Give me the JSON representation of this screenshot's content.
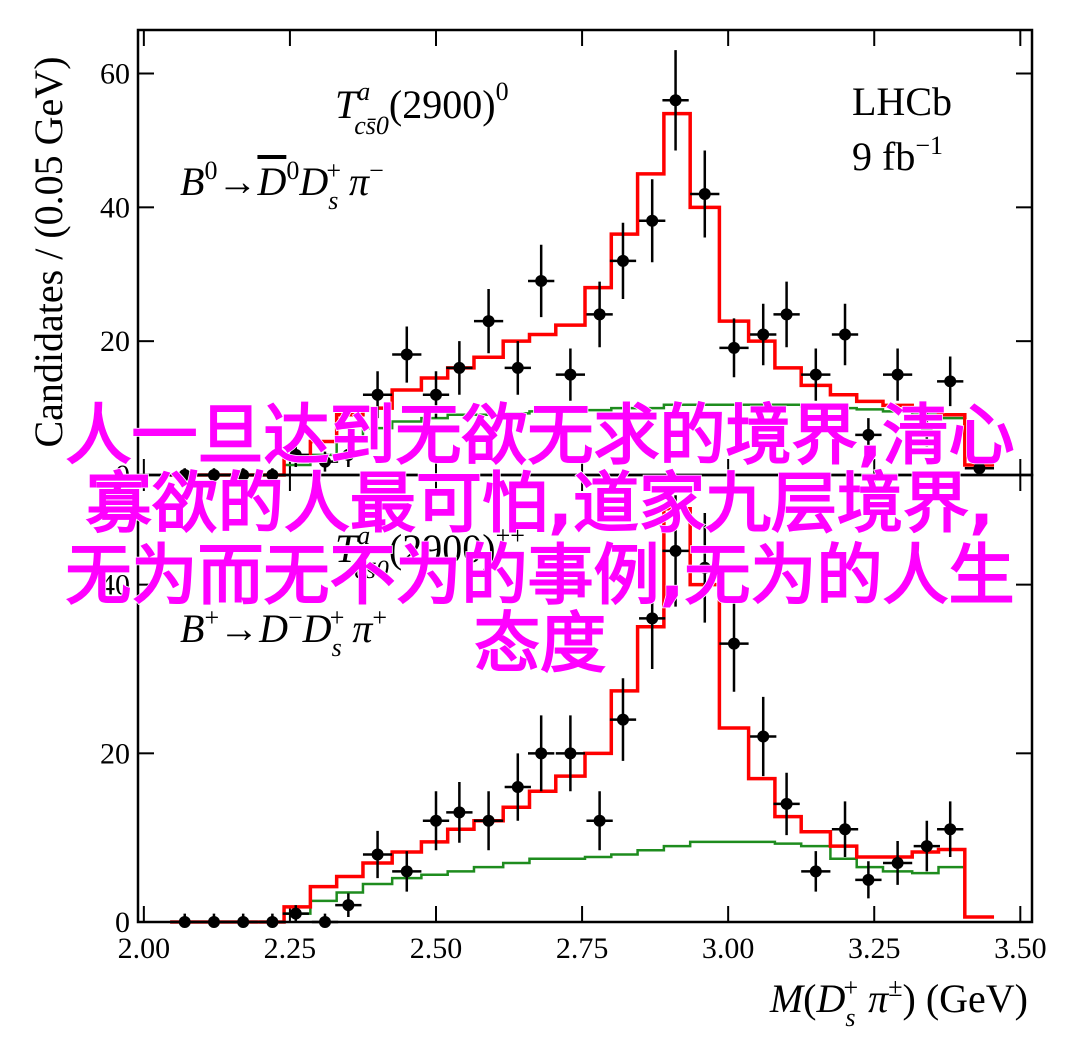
{
  "chart_data": [
    {
      "type": "errorbar",
      "ylabel": "Candidates / (0.05 GeV)",
      "annotation_1": [
        "T",
        "a",
        "cs̄0",
        "(2900)",
        "0"
      ],
      "annotation_2": [
        "B",
        "0",
        "→",
        "D",
        "0",
        "D",
        "s",
        "+",
        "π",
        "−"
      ],
      "experiment": "LHCb",
      "luminosity": [
        "9 fb",
        "−1"
      ],
      "xlim": [
        1.99,
        3.52
      ],
      "ylim": [
        0,
        66.5
      ],
      "yticks": [
        0,
        20,
        40,
        60
      ],
      "x": [
        2.07,
        2.12,
        2.17,
        2.22,
        2.26,
        2.31,
        2.35,
        2.4,
        2.45,
        2.5,
        2.54,
        2.59,
        2.64,
        2.68,
        2.73,
        2.78,
        2.82,
        2.87,
        2.91,
        2.96,
        3.01,
        3.06,
        3.1,
        3.15,
        3.2,
        3.24,
        3.29,
        3.34,
        3.38,
        3.43
      ],
      "data": {
        "color": "#000000",
        "values": [
          0,
          0,
          0,
          0,
          3,
          2,
          3,
          12,
          18,
          12,
          16,
          23,
          16,
          29,
          15,
          24,
          32,
          38,
          56,
          42,
          19,
          21,
          24,
          15,
          21,
          6,
          15,
          7,
          14,
          1
        ],
        "errors": [
          1,
          1,
          1,
          1,
          1.8,
          1.5,
          1.8,
          3.5,
          4.2,
          3.5,
          4,
          4.8,
          4,
          5.4,
          3.9,
          4.9,
          5.7,
          6.2,
          7.5,
          6.5,
          4.4,
          4.6,
          4.9,
          3.9,
          4.6,
          2.5,
          3.9,
          2.7,
          3.7,
          1
        ]
      },
      "fit": {
        "color": "#ff0000",
        "values": [
          0,
          0,
          0,
          0,
          2.5,
          5,
          9,
          10,
          12.7,
          14.5,
          16,
          17.6,
          20,
          21,
          22.4,
          28,
          36,
          45,
          54,
          40,
          23,
          20,
          16,
          13.4,
          12,
          11,
          10.4,
          9.7,
          9,
          1.5
        ]
      },
      "background": {
        "color": "#1e8c1e",
        "values": [
          0,
          0,
          0,
          0,
          1.5,
          3,
          5,
          7,
          8,
          8.5,
          9,
          9,
          9.2,
          9.5,
          9.5,
          9.7,
          10,
          10,
          10.5,
          10.5,
          10.5,
          10.5,
          10.5,
          10.2,
          10,
          9.8,
          9.5,
          9,
          8.5,
          1.5
        ]
      }
    },
    {
      "type": "errorbar",
      "xlabel": [
        "M",
        "(",
        "D",
        "s",
        "+",
        " π",
        "±",
        ") (GeV)"
      ],
      "annotation_1": [
        "T",
        "a",
        "cs̄0",
        "(2900)",
        "++"
      ],
      "annotation_2": [
        "B",
        "+",
        "→",
        "D",
        "−",
        "D",
        "s",
        "+",
        "π",
        "+"
      ],
      "xlim": [
        1.99,
        3.52
      ],
      "ylim": [
        0,
        53
      ],
      "yticks": [
        0,
        20,
        40
      ],
      "xticks": [
        {
          "value": 2.0,
          "label": "2.00"
        },
        {
          "value": 2.25,
          "label": "2.25"
        },
        {
          "value": 2.5,
          "label": "2.50"
        },
        {
          "value": 2.75,
          "label": "2.75"
        },
        {
          "value": 3.0,
          "label": "3.00"
        },
        {
          "value": 3.25,
          "label": "3.25"
        },
        {
          "value": 3.5,
          "label": "3.50"
        }
      ],
      "x": [
        2.07,
        2.12,
        2.17,
        2.22,
        2.26,
        2.31,
        2.35,
        2.4,
        2.45,
        2.5,
        2.54,
        2.59,
        2.64,
        2.68,
        2.73,
        2.78,
        2.82,
        2.87,
        2.91,
        2.96,
        3.01,
        3.06,
        3.1,
        3.15,
        3.2,
        3.24,
        3.29,
        3.34,
        3.38,
        3.43
      ],
      "data": {
        "color": "#000000",
        "values": [
          0,
          0,
          0,
          0,
          1,
          0,
          2,
          8,
          6,
          12,
          13,
          12,
          16,
          20,
          20,
          12,
          24,
          36,
          44,
          42,
          33,
          22,
          14,
          6,
          11,
          5,
          7,
          9,
          11,
          null
        ],
        "errors": [
          1,
          1,
          1,
          1,
          1,
          1,
          1.4,
          2.8,
          2.4,
          3.5,
          3.6,
          3.5,
          4,
          4.5,
          4.5,
          3.5,
          4.9,
          6,
          6.6,
          6.5,
          5.7,
          4.7,
          3.7,
          2.4,
          3.3,
          2.2,
          2.6,
          3,
          3.3,
          null
        ]
      },
      "fit": {
        "color": "#ff0000",
        "values": [
          0,
          0,
          0,
          0,
          1.8,
          4.2,
          5.4,
          7,
          8.3,
          9.5,
          11,
          12,
          13.6,
          15.5,
          17.3,
          20,
          27.4,
          35,
          49,
          40,
          23,
          17,
          12.5,
          10.7,
          9,
          7.7,
          7.7,
          8.3,
          8.6,
          0.6
        ]
      },
      "background": {
        "color": "#1e8c1e",
        "values": [
          0,
          0,
          0,
          0,
          1,
          2.5,
          3.5,
          4.5,
          5.2,
          5.6,
          6,
          6.5,
          7,
          7.5,
          7.5,
          7.7,
          8,
          8.5,
          9,
          9.5,
          9.5,
          9.5,
          9.3,
          9,
          7.5,
          6.5,
          6,
          5.8,
          6.5,
          0.6
        ]
      }
    }
  ],
  "overlay": {
    "lines": [
      "人一旦达到无欲无求的境界,清心",
      "寡欲的人最可怕,道家九层境界,",
      "无为而无不为的事例,无为的人生",
      "态度"
    ]
  }
}
